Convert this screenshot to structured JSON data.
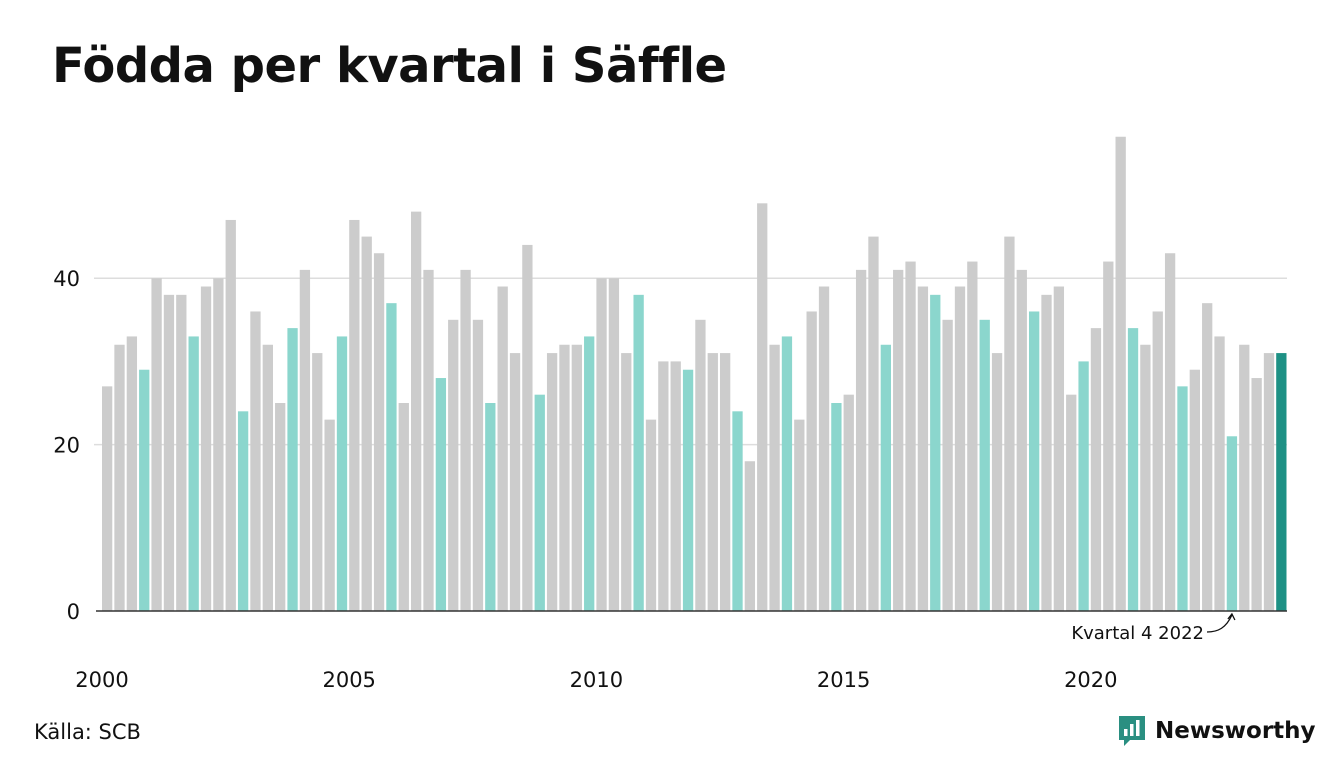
{
  "title": "Födda per kvartal i Säffle",
  "source": "Källa: SCB",
  "brand": {
    "name": "Newsworthy",
    "icon": "newsworthy-logo-icon"
  },
  "colors": {
    "default_bar": "#cccccc",
    "q4_bar": "#8bd6cd",
    "latest_bar": "#1e9185",
    "brand": "#2a8f81",
    "grid": "#dddddd",
    "baseline": "#333333"
  },
  "chart_data": {
    "type": "bar",
    "title": "Födda per kvartal i Säffle",
    "xlabel": "",
    "ylabel": "",
    "x_ticks": [
      "2000",
      "2005",
      "2010",
      "2015",
      "2020"
    ],
    "y_ticks": [
      0,
      20,
      40
    ],
    "ylim": [
      0,
      58
    ],
    "grid": "horizontal",
    "highlight_quarter": 4,
    "annotation": "Kvartal 4 2022",
    "series": [
      {
        "start_year": 2000,
        "quarters_per_year": 4,
        "values": [
          27,
          32,
          33,
          29,
          40,
          38,
          38,
          33,
          39,
          40,
          47,
          24,
          36,
          32,
          25,
          34,
          41,
          31,
          23,
          33,
          47,
          45,
          43,
          37,
          25,
          48,
          41,
          28,
          35,
          41,
          35,
          25,
          39,
          31,
          44,
          26,
          31,
          32,
          32,
          33,
          40,
          40,
          31,
          38,
          23,
          30,
          30,
          29,
          35,
          31,
          31,
          24,
          18,
          49,
          32,
          33,
          23,
          36,
          39,
          25,
          26,
          41,
          45,
          32,
          41,
          42,
          39,
          38,
          35,
          39,
          42,
          35,
          31,
          45,
          41,
          36,
          38,
          39,
          26,
          30,
          34,
          42,
          57,
          34,
          32,
          36,
          43,
          27,
          29,
          37,
          33,
          21,
          32,
          28,
          31,
          31
        ]
      }
    ]
  }
}
